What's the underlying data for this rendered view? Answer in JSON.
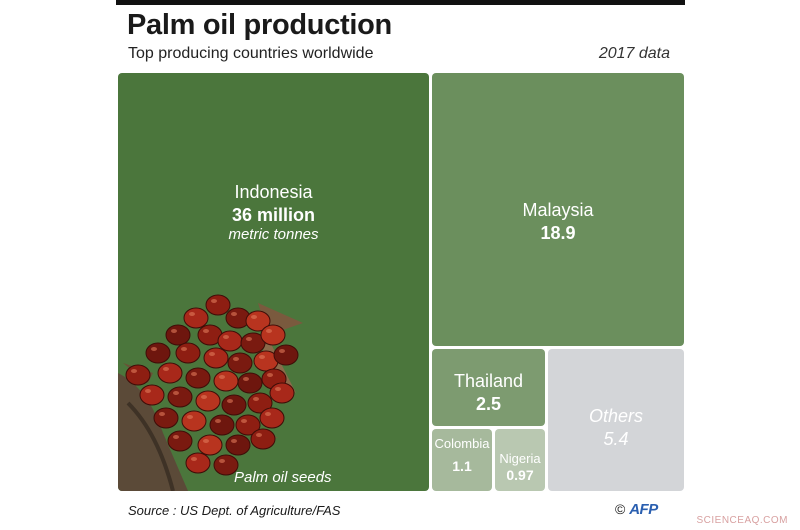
{
  "header": {
    "title": "Palm oil production",
    "subtitle": "Top producing countries worldwide",
    "year_note": "2017 data"
  },
  "chart_data": {
    "type": "treemap",
    "unit": "million metric tonnes",
    "items": [
      {
        "name": "Indonesia",
        "value_label": "36 million",
        "unit_label": "metric tonnes",
        "value": 36,
        "color": "#4b763c"
      },
      {
        "name": "Malaysia",
        "value_label": "18.9",
        "value": 18.9,
        "color": "#6b8f5d"
      },
      {
        "name": "Thailand",
        "value_label": "2.5",
        "value": 2.5,
        "color": "#7d9b70"
      },
      {
        "name": "Colombia",
        "value_label": "1.1",
        "value": 1.1,
        "color": "#a6b99c"
      },
      {
        "name": "Nigeria",
        "value_label": "0.97",
        "value": 0.97,
        "color": "#b9c8b1"
      },
      {
        "name": "Others",
        "value_label": "5.4",
        "value": 5.4,
        "color": "#d3d5d8"
      }
    ]
  },
  "photo": {
    "caption": "Palm oil seeds",
    "icon": "palm-fruit-bunch"
  },
  "footer": {
    "source": "Source : US Dept. of Agriculture/FAS",
    "copyright": "©",
    "logo": "AFP"
  },
  "watermark": "SCIENCEAQ.COM"
}
